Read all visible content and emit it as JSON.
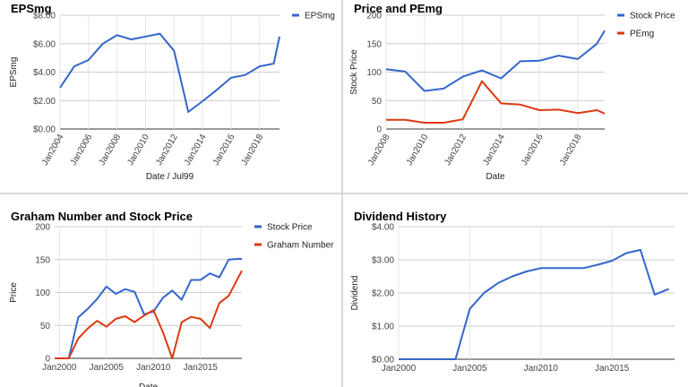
{
  "chart_data": [
    {
      "type": "line",
      "title": "EPSmg",
      "xlabel": "Date / Jul99",
      "ylabel": "EPSmg",
      "x_ticks": [
        "Jan2004",
        "Jan2006",
        "Jan2008",
        "Jan2010",
        "Jan2012",
        "Jan2014",
        "Jan2016",
        "Jan2018"
      ],
      "y_ticks": [
        "$0.00",
        "$2.00",
        "$4.00",
        "$6.00",
        "$8.00"
      ],
      "xlim": [
        2004,
        2019.4
      ],
      "ylim": [
        0,
        8
      ],
      "legend_position": "top-right",
      "grid": true,
      "series": [
        {
          "name": "EPSmg",
          "color": "#3366cc",
          "x": [
            2004,
            2005,
            2006,
            2007,
            2008,
            2009,
            2010,
            2011,
            2012,
            2013,
            2014,
            2015,
            2016,
            2017,
            2018,
            2019,
            2019.4
          ],
          "y": [
            2.9,
            4.4,
            4.85,
            6.0,
            6.6,
            6.3,
            6.5,
            6.7,
            5.5,
            1.2,
            1.95,
            2.75,
            3.6,
            3.8,
            4.4,
            4.6,
            6.5
          ]
        }
      ]
    },
    {
      "type": "line",
      "title": "Price and PEmg",
      "xlabel": "Date",
      "ylabel": "Stock Price",
      "x_ticks": [
        "Jan2008",
        "Jan2010",
        "Jan2012",
        "Jan2014",
        "Jan2016",
        "Jan2018"
      ],
      "y_ticks": [
        "0",
        "50",
        "100",
        "150",
        "200"
      ],
      "xlim": [
        2008,
        2019.4
      ],
      "ylim": [
        0,
        200
      ],
      "legend_position": "top-right",
      "grid": true,
      "series": [
        {
          "name": "Stock Price",
          "color": "#3366cc",
          "x": [
            2008,
            2009,
            2010,
            2011,
            2012,
            2013,
            2014,
            2015,
            2016,
            2017,
            2018,
            2019,
            2019.4
          ],
          "y": [
            105,
            101,
            67,
            71,
            92,
            103,
            89,
            119,
            120,
            129,
            123,
            150,
            173
          ]
        },
        {
          "name": "PEmg",
          "color": "#dc3912",
          "x": [
            2008,
            2009,
            2010,
            2011,
            2012,
            2013,
            2014,
            2015,
            2016,
            2017,
            2018,
            2019,
            2019.4
          ],
          "y": [
            16,
            16,
            11,
            11,
            17,
            84,
            45,
            43,
            33,
            34,
            28,
            33,
            27
          ]
        }
      ]
    },
    {
      "type": "line",
      "title": "Graham Number and Stock Price",
      "xlabel": "Date",
      "ylabel": "Price",
      "x_ticks": [
        "Jan2000",
        "Jan2005",
        "Jan2010",
        "Jan2015"
      ],
      "y_ticks": [
        "0",
        "50",
        "100",
        "150",
        "200"
      ],
      "xlim": [
        1999.5,
        2019.4
      ],
      "ylim": [
        0,
        200
      ],
      "legend_position": "top-right",
      "grid": true,
      "series": [
        {
          "name": "Stock Price",
          "color": "#3366cc",
          "x": [
            1999.5,
            2001,
            2002,
            2003,
            2004,
            2005,
            2006,
            2007,
            2008,
            2009,
            2010,
            2011,
            2012,
            2013,
            2014,
            2015,
            2016,
            2017,
            2018,
            2019,
            2019.4
          ],
          "y": [
            0,
            0,
            62,
            75,
            90,
            109,
            98,
            105,
            101,
            67,
            71,
            92,
            103,
            89,
            119,
            119,
            129,
            123,
            150,
            151,
            151
          ]
        },
        {
          "name": "Graham Number",
          "color": "#dc3912",
          "x": [
            1999.5,
            2001,
            2002,
            2003,
            2004,
            2005,
            2006,
            2007,
            2008,
            2009,
            2010,
            2011,
            2012,
            2013,
            2014,
            2015,
            2016,
            2017,
            2018,
            2019.4
          ],
          "y": [
            0,
            0,
            30,
            45,
            57,
            48,
            60,
            64,
            55,
            65,
            73,
            40,
            0,
            55,
            63,
            60,
            46,
            84,
            95,
            133
          ]
        }
      ]
    },
    {
      "type": "line",
      "title": "Dividend History",
      "xlabel": "",
      "ylabel": "Dividend",
      "x_ticks": [
        "Jan2000",
        "Jan2005",
        "Jan2010",
        "Jan2015"
      ],
      "y_ticks": [
        "$0.00",
        "$1.00",
        "$2.00",
        "$3.00",
        "$4.00"
      ],
      "xlim": [
        2000,
        2019.4
      ],
      "ylim": [
        0,
        4
      ],
      "legend_position": "none",
      "grid": true,
      "series": [
        {
          "color": "#3366cc",
          "x": [
            2000,
            2004,
            2005,
            2006,
            2007,
            2008,
            2009,
            2010,
            2011,
            2012,
            2013,
            2014,
            2015,
            2016,
            2017,
            2018,
            2019
          ],
          "y": [
            0,
            0,
            1.52,
            2.0,
            2.3,
            2.5,
            2.65,
            2.75,
            2.75,
            2.75,
            2.75,
            2.85,
            2.97,
            3.2,
            3.3,
            1.95,
            2.12
          ]
        }
      ]
    }
  ]
}
